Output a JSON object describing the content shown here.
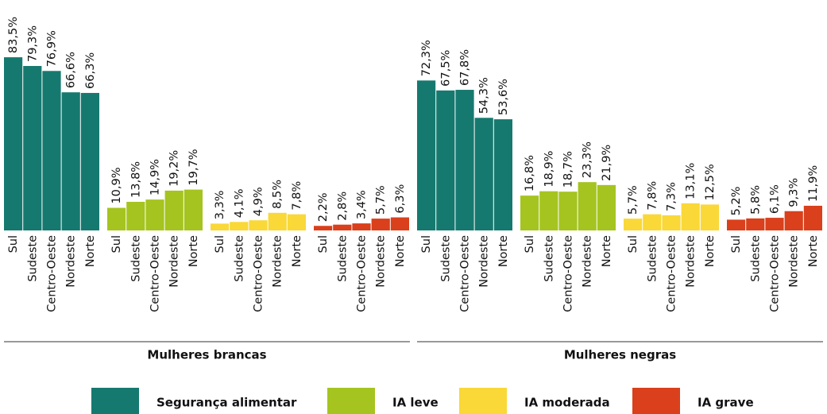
{
  "chart_data": {
    "type": "bar",
    "categories": [
      "Sul",
      "Sudeste",
      "Centro-Oeste",
      "Nordeste",
      "Norte"
    ],
    "groups": [
      "Mulheres brancas",
      "Mulheres negras"
    ],
    "series": [
      {
        "name": "Segurança alimentar",
        "color": "#16796f",
        "values": [
          [
            83.5,
            79.3,
            76.9,
            66.6,
            66.3
          ],
          [
            72.3,
            67.5,
            67.8,
            54.3,
            53.6
          ]
        ],
        "value_labels": [
          [
            "83,5%",
            "79,3%",
            "76,9%",
            "66,6%",
            "66,3%"
          ],
          [
            "72,3%",
            "67,5%",
            "67,8%",
            "54,3%",
            "53,6%"
          ]
        ]
      },
      {
        "name": "IA leve",
        "color": "#a5c41f",
        "values": [
          [
            10.9,
            13.8,
            14.9,
            19.2,
            19.7
          ],
          [
            16.8,
            18.9,
            18.7,
            23.3,
            21.9
          ]
        ],
        "value_labels": [
          [
            "10,9%",
            "13,8%",
            "14,9%",
            "19,2%",
            "19,7%"
          ],
          [
            "16,8%",
            "18,9%",
            "18,7%",
            "23,3%",
            "21,9%"
          ]
        ]
      },
      {
        "name": "IA moderada",
        "color": "#f9d838",
        "values": [
          [
            3.3,
            4.1,
            4.9,
            8.5,
            7.8
          ],
          [
            5.7,
            7.8,
            7.3,
            13.1,
            12.5
          ]
        ],
        "value_labels": [
          [
            "3,3%",
            "4,1%",
            "4,9%",
            "8,5%",
            "7,8%"
          ],
          [
            "5,7%",
            "7,8%",
            "7,3%",
            "13,1%",
            "12,5%"
          ]
        ]
      },
      {
        "name": "IA grave",
        "color": "#d9401b",
        "values": [
          [
            2.2,
            2.8,
            3.4,
            5.7,
            6.3
          ],
          [
            5.2,
            5.8,
            6.1,
            9.3,
            11.9
          ]
        ],
        "value_labels": [
          [
            "2,2%",
            "2,8%",
            "3,4%",
            "5,7%",
            "6,3%"
          ],
          [
            "5,2%",
            "5,8%",
            "6,1%",
            "9,3%",
            "11,9%"
          ]
        ]
      }
    ]
  }
}
